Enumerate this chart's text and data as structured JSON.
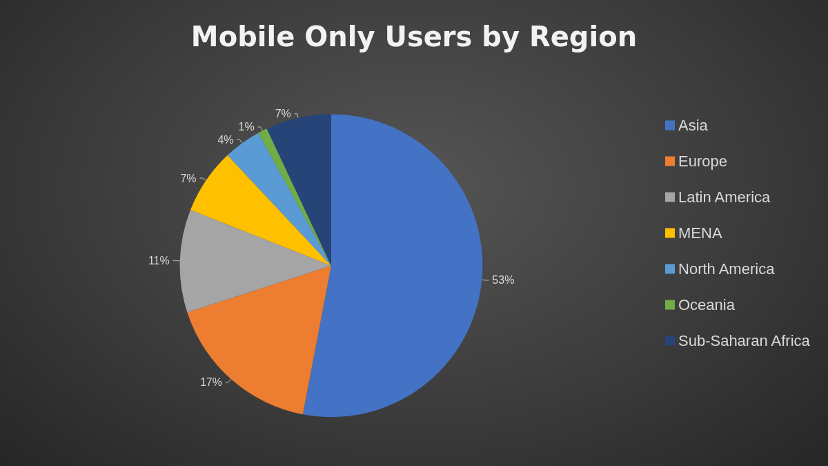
{
  "chart_data": {
    "type": "pie",
    "title": "Mobile Only Users by Region",
    "categories": [
      "Asia",
      "Europe",
      "Latin America",
      "MENA",
      "North America",
      "Oceania",
      "Sub-Saharan Africa"
    ],
    "values": [
      53,
      17,
      11,
      7,
      4,
      1,
      7
    ],
    "colors": [
      "#4472c4",
      "#ed7d31",
      "#a5a5a5",
      "#ffc000",
      "#5b9bd5",
      "#70ad47",
      "#264478"
    ],
    "value_labels": [
      "53%",
      "17%",
      "11%",
      "7%",
      "4%",
      "1%",
      "7%"
    ],
    "legend": "right"
  }
}
